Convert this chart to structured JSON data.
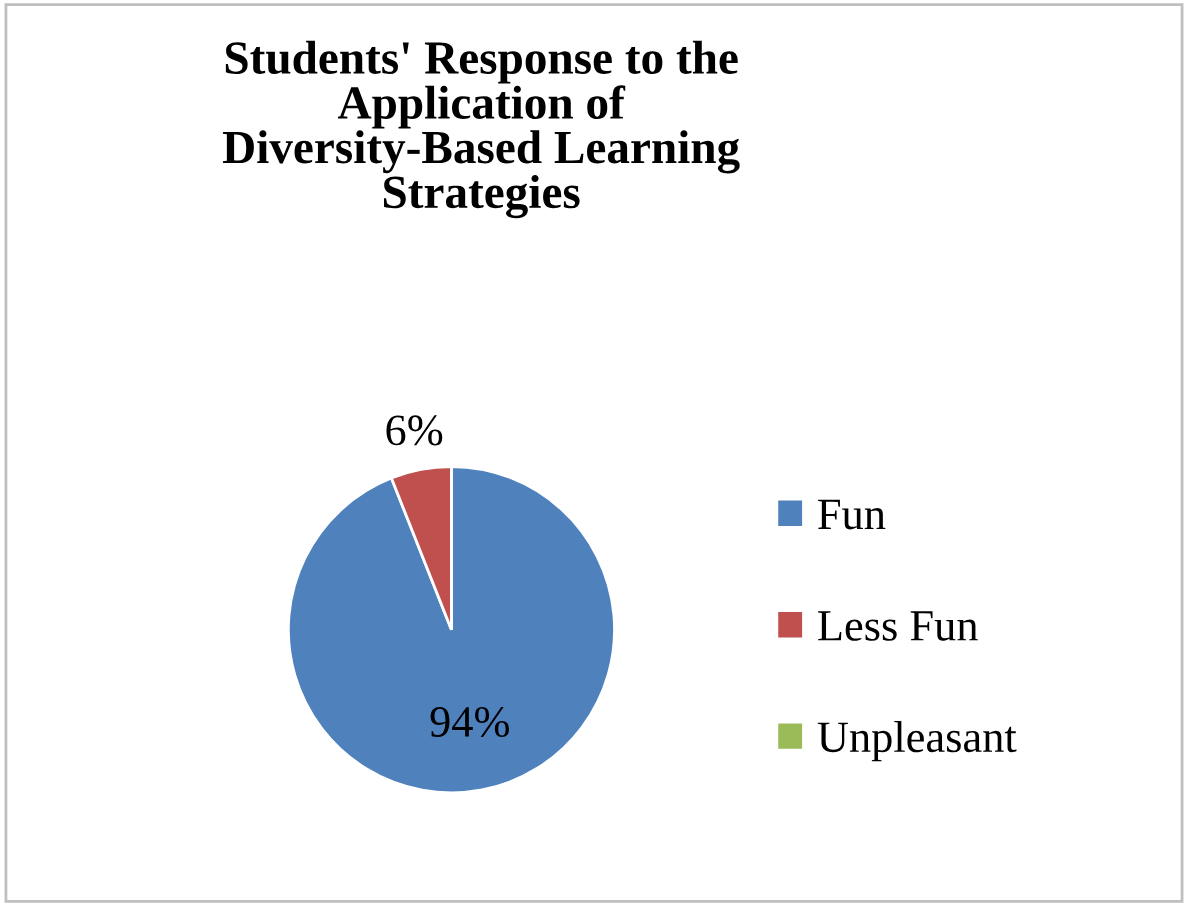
{
  "chart_data": {
    "type": "pie",
    "title": "Students' Response to the Application of Diversity-Based Learning Strategies",
    "categories": [
      "Fun",
      "Less Fun",
      "Unpleasant"
    ],
    "values": [
      94,
      6,
      0
    ],
    "colors": [
      "#4f81bd",
      "#c0504d",
      "#9bbb59"
    ],
    "value_labels": [
      "94%",
      "6%",
      null
    ],
    "legend": "right"
  }
}
